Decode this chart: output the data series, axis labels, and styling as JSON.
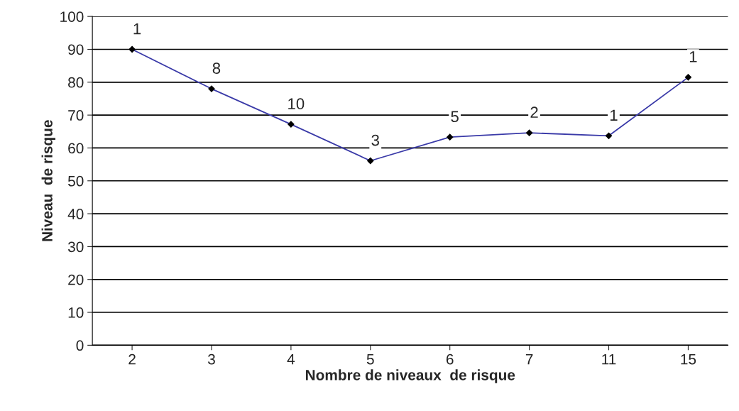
{
  "chart_data": {
    "type": "line",
    "xlabel": "Nombre de niveaux  de risque",
    "ylabel": "Niveau  de risque",
    "categories": [
      "2",
      "3",
      "4",
      "5",
      "6",
      "7",
      "11",
      "15"
    ],
    "series": [
      {
        "color": "#3a3aa8",
        "values": [
          90,
          78,
          67.2,
          56.1,
          63.3,
          64.6,
          63.7,
          81.5
        ]
      }
    ],
    "ylim": [
      0,
      100
    ],
    "yticks": [
      0,
      10,
      20,
      30,
      40,
      50,
      60,
      70,
      80,
      90,
      100
    ],
    "grid": "y",
    "marker": "diamond",
    "annotations": [
      {
        "text": "1",
        "x": "2",
        "y": 90
      },
      {
        "text": "8",
        "x": "3",
        "y": 78
      },
      {
        "text": "10",
        "x": "4",
        "y": 67.2
      },
      {
        "text": "3",
        "x": "5",
        "y": 56.1
      },
      {
        "text": "5",
        "x": "6",
        "y": 63.3
      },
      {
        "text": "2",
        "x": "7",
        "y": 64.6
      },
      {
        "text": "1",
        "x": "11",
        "y": 63.7
      },
      {
        "text": "1",
        "x": "15",
        "y": 81.5
      }
    ]
  }
}
